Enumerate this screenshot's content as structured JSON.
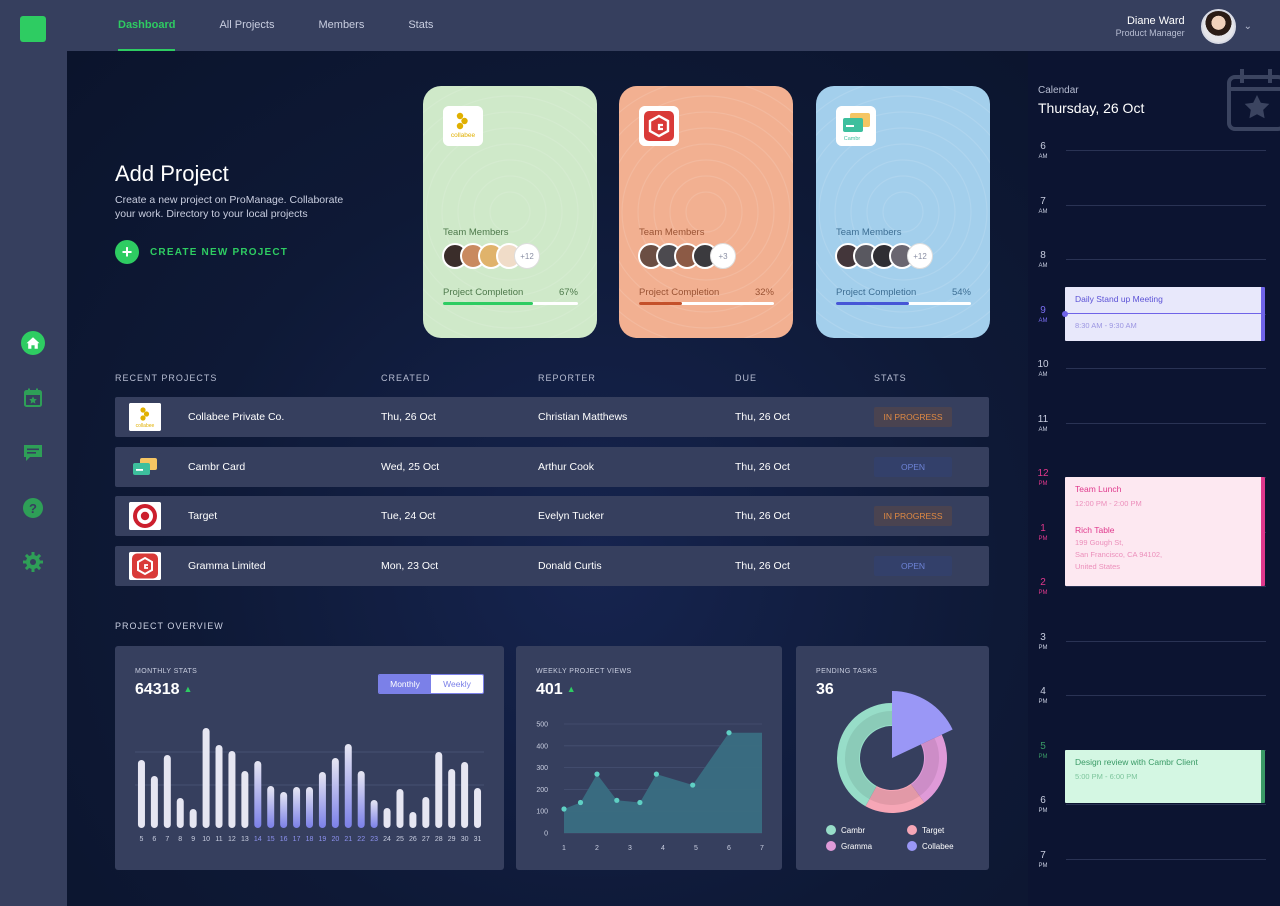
{
  "topnav": {
    "tabs": [
      {
        "label": "Dashboard",
        "active": true
      },
      {
        "label": "All Projects",
        "active": false
      },
      {
        "label": "Members",
        "active": false
      },
      {
        "label": "Stats",
        "active": false
      }
    ],
    "user": {
      "name": "Diane Ward",
      "role": "Product Manager"
    }
  },
  "sidebar": {
    "icons": [
      "home-icon",
      "calendar-icon",
      "chat-icon",
      "help-icon",
      "settings-icon"
    ],
    "active": "home-icon"
  },
  "add_project": {
    "title": "Add Project",
    "description": "Create a new project on ProManage. Collaborate your work. Directory to your local projects",
    "create_label": "CREATE NEW PROJECT"
  },
  "project_cards": [
    {
      "name": "collabee",
      "logo_text": "collabee",
      "team_label": "Team Members",
      "more": "+12",
      "completion_label": "Project Completion",
      "completion": "67%",
      "completion_value": 0.67,
      "bg": "#cfe9c9",
      "text_color": "#4e7a4c",
      "bar_color": "#2ecc62"
    },
    {
      "name": "gramma",
      "logo_text": "",
      "team_label": "Team Members",
      "more": "+3",
      "completion_label": "Project Completion",
      "completion": "32%",
      "completion_value": 0.32,
      "bg": "#f2b091",
      "text_color": "#9a5334",
      "bar_color": "#c4512b"
    },
    {
      "name": "cambr",
      "logo_text": "Cambr",
      "team_label": "Team Members",
      "more": "+12",
      "completion_label": "Project Completion",
      "completion": "54%",
      "completion_value": 0.54,
      "bg": "#a3cfec",
      "text_color": "#3e6f94",
      "bar_color": "#4656d6"
    }
  ],
  "recent_projects": {
    "title": "RECENT PROJECTS",
    "headers": {
      "created": "CREATED",
      "reporter": "REPORTER",
      "due": "DUE",
      "stats": "STATS"
    },
    "rows": [
      {
        "name": "Collabee Private Co.",
        "created": "Thu, 26 Oct",
        "reporter": "Christian Matthews",
        "due": "Thu, 26 Oct",
        "status": "IN PROGRESS",
        "logo": "collabee"
      },
      {
        "name": "Cambr Card",
        "created": "Wed, 25 Oct",
        "reporter": "Arthur Cook",
        "due": "Thu, 26 Oct",
        "status": "OPEN",
        "logo": "cambr"
      },
      {
        "name": "Target",
        "created": "Tue, 24 Oct",
        "reporter": "Evelyn Tucker",
        "due": "Thu, 26 Oct",
        "status": "IN PROGRESS",
        "logo": "target"
      },
      {
        "name": "Gramma Limited",
        "created": "Mon, 23 Oct",
        "reporter": "Donald Curtis",
        "due": "Thu, 26 Oct",
        "status": "OPEN",
        "logo": "gramma"
      }
    ]
  },
  "overview": {
    "title": "PROJECT OVERVIEW",
    "monthly": {
      "label": "MONTHLY STATS",
      "value": "64318",
      "toggle": [
        "Monthly",
        "Weekly"
      ],
      "active_toggle": "Monthly"
    },
    "weekly": {
      "label": "WEEKLY PROJECT VIEWS",
      "value": "401"
    },
    "pending": {
      "label": "PENDING TASKS",
      "value": "36",
      "legend": [
        "Cambr",
        "Target",
        "Gramma",
        "Collabee"
      ]
    }
  },
  "chart_data": [
    {
      "type": "bar",
      "title": "MONTHLY STATS",
      "categories": [
        "5",
        "6",
        "7",
        "8",
        "9",
        "10",
        "11",
        "12",
        "13",
        "14",
        "15",
        "16",
        "17",
        "18",
        "19",
        "20",
        "21",
        "22",
        "23",
        "24",
        "25",
        "26",
        "27",
        "28",
        "29",
        "30",
        "31"
      ],
      "values": [
        68,
        52,
        73,
        30,
        19,
        100,
        83,
        77,
        57,
        67,
        42,
        36,
        41,
        41,
        56,
        70,
        84,
        57,
        28,
        20,
        39,
        16,
        31,
        76,
        59,
        66,
        40
      ],
      "highlight_categories": [
        "14",
        "15",
        "16",
        "17",
        "18",
        "19",
        "20",
        "21",
        "22",
        "23"
      ],
      "colors": {
        "bar": "#e6e6f2",
        "highlight_base": "#7b80e8"
      }
    },
    {
      "type": "area",
      "title": "WEEKLY PROJECT VIEWS",
      "x": [
        1,
        1.5,
        2,
        2.6,
        3.3,
        3.8,
        4.9,
        6,
        7
      ],
      "y": [
        110,
        140,
        270,
        150,
        140,
        270,
        220,
        460,
        460
      ],
      "xticks": [
        1,
        2,
        3,
        4,
        5,
        6,
        7
      ],
      "yticks": [
        0,
        100,
        200,
        300,
        400,
        500
      ],
      "ylim": [
        0,
        500
      ],
      "colors": {
        "fill": "#3a6e82",
        "point": "#5fd0c4"
      }
    },
    {
      "type": "pie",
      "title": "PENDING TASKS",
      "labels": [
        "Collabee",
        "Gramma",
        "Target",
        "Cambr"
      ],
      "values": [
        18,
        22,
        18,
        42
      ],
      "colors": [
        "#9a97f6",
        "#df9ad8",
        "#f6a6b6",
        "#97ddc8"
      ]
    }
  ],
  "calendar": {
    "label": "Calendar",
    "date": "Thursday, 26 Oct",
    "hours": [
      {
        "h": "6",
        "ap": "AM"
      },
      {
        "h": "7",
        "ap": "AM"
      },
      {
        "h": "8",
        "ap": "AM"
      },
      {
        "h": "9",
        "ap": "AM"
      },
      {
        "h": "10",
        "ap": "AM"
      },
      {
        "h": "11",
        "ap": "AM"
      },
      {
        "h": "12",
        "ap": "PM"
      },
      {
        "h": "1",
        "ap": "PM"
      },
      {
        "h": "2",
        "ap": "PM"
      },
      {
        "h": "3",
        "ap": "PM"
      },
      {
        "h": "4",
        "ap": "PM"
      },
      {
        "h": "5",
        "ap": "PM"
      },
      {
        "h": "6",
        "ap": "PM"
      },
      {
        "h": "7",
        "ap": "PM"
      }
    ],
    "events": [
      {
        "title": "Daily Stand up Meeting",
        "time": "8:30 AM - 9:30 AM"
      },
      {
        "title": "Team Lunch",
        "time": "12:00 PM - 2:00 PM",
        "place": "Rich Table",
        "addr1": "199 Gough St,",
        "addr2": "San Francisco, CA 94102,",
        "addr3": "United States"
      },
      {
        "title": "Design review with Cambr Client",
        "time": "5:00 PM - 6:00 PM"
      }
    ]
  }
}
